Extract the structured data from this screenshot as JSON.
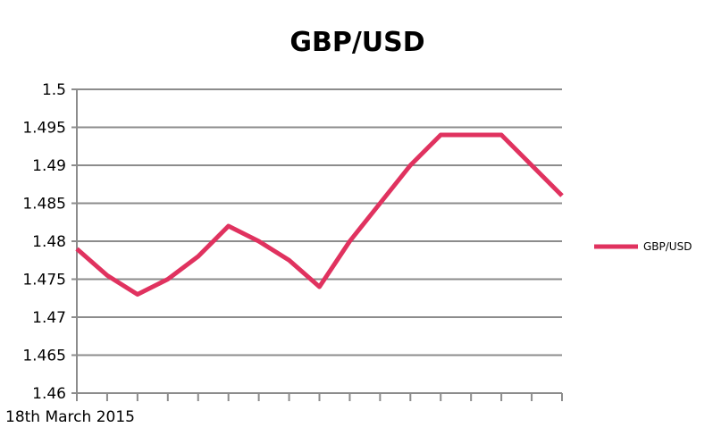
{
  "chart_data": {
    "type": "line",
    "title": "GBP/USD",
    "xlabel": "",
    "ylabel": "",
    "x_first_label": "18th March 2015",
    "point_count": 17,
    "ylim": [
      1.46,
      1.5
    ],
    "yticks": [
      1.46,
      1.465,
      1.47,
      1.475,
      1.48,
      1.485,
      1.49,
      1.495,
      1.5
    ],
    "ytick_labels": [
      "1.46",
      "1.465",
      "1.47",
      "1.475",
      "1.48",
      "1.485",
      "1.49",
      "1.495",
      "1.5"
    ],
    "grid": "horizontal",
    "legend_position": "right",
    "series": [
      {
        "name": "GBP/USD",
        "color": "#e0325f",
        "values": [
          1.479,
          1.4755,
          1.473,
          1.475,
          1.478,
          1.482,
          1.48,
          1.4775,
          1.474,
          1.48,
          1.485,
          1.49,
          1.494,
          1.494,
          1.494,
          1.49,
          1.486
        ]
      }
    ]
  }
}
